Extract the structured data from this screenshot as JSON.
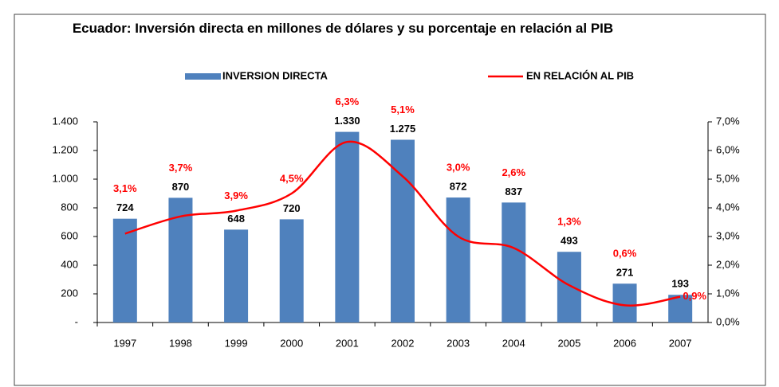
{
  "chart_data": {
    "type": "bar-line",
    "title": "Ecuador: Inversión directa en millones de dólares y su porcentaje en relación al PIB",
    "categories": [
      "1997",
      "1998",
      "1999",
      "2000",
      "2001",
      "2002",
      "2003",
      "2004",
      "2005",
      "2006",
      "2007"
    ],
    "series": [
      {
        "name": "INVERSION DIRECTA",
        "color": "#4f81bd",
        "type": "bar",
        "values": [
          724,
          870,
          648,
          720,
          1330,
          1275,
          872,
          837,
          493,
          271,
          193
        ],
        "value_labels": [
          "724",
          "870",
          "648",
          "720",
          "1.330",
          "1.275",
          "872",
          "837",
          "493",
          "271",
          "193"
        ]
      },
      {
        "name": "EN RELACIÓN AL PIB",
        "color": "#ff0000",
        "type": "line",
        "axis": "y2",
        "values": [
          3.1,
          3.7,
          3.9,
          4.5,
          6.3,
          5.1,
          3.0,
          2.6,
          1.3,
          0.6,
          0.9
        ],
        "value_labels": [
          "3,1%",
          "3,7%",
          "3,9%",
          "4,5%",
          "6,3%",
          "5,1%",
          "3,0%",
          "2,6%",
          "1,3%",
          "0,6%",
          "0,9%"
        ]
      }
    ],
    "ylim": [
      0,
      1400
    ],
    "yticks": [
      {
        "value": 0,
        "label": "-"
      },
      200,
      400,
      600,
      800,
      {
        "value": 1000,
        "label": "1.000"
      },
      {
        "value": 1200,
        "label": "1.200"
      },
      {
        "value": 1400,
        "label": "1.400"
      }
    ],
    "y2lim": [
      0,
      7
    ],
    "y2ticks": [
      {
        "value": 0,
        "label": "0,0%"
      },
      {
        "value": 1,
        "label": "1,0%"
      },
      {
        "value": 2,
        "label": "2,0%"
      },
      {
        "value": 3,
        "label": "3,0%"
      },
      {
        "value": 4,
        "label": "4,0%"
      },
      {
        "value": 5,
        "label": "5,0%"
      },
      {
        "value": 6,
        "label": "6,0%"
      },
      {
        "value": 7,
        "label": "7,0%"
      }
    ],
    "grid": false,
    "legend": "top"
  }
}
